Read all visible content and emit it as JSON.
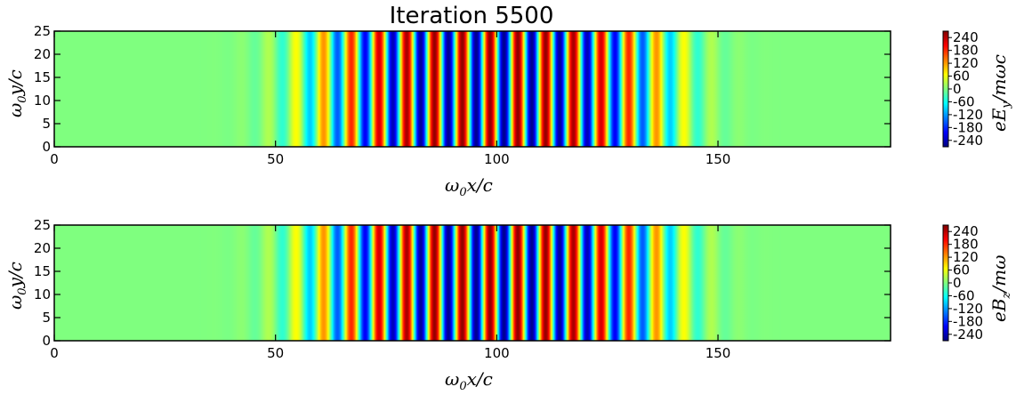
{
  "title": "Iteration 5500",
  "colormap": [
    "#00007f",
    "#0000ff",
    "#007fff",
    "#00ffff",
    "#7fff7f",
    "#ffff00",
    "#ff7f00",
    "#ff0000",
    "#7f0000"
  ],
  "chart_data": [
    {
      "type": "heatmap",
      "field": "Ey",
      "xlabel": "ω0x/c",
      "ylabel": "ω0y/c",
      "xlim": [
        0,
        189
      ],
      "ylim": [
        0,
        25
      ],
      "xticks": [
        0,
        50,
        100,
        150
      ],
      "yticks": [
        0,
        5,
        10,
        15,
        20,
        25
      ],
      "colorbar": {
        "label": "eEy/mωc",
        "range": [
          -270,
          270
        ],
        "ticks": [
          240,
          180,
          120,
          60,
          0,
          -60,
          -120,
          -180,
          -240
        ]
      },
      "wave": {
        "amplitude": 260,
        "center_x": 98.5,
        "wavelength": 6.28,
        "envelope_halfwidth_x": 37,
        "varies_along_y": false
      }
    },
    {
      "type": "heatmap",
      "field": "Bz",
      "xlabel": "ω0x/c",
      "ylabel": "ω0y/c",
      "xlim": [
        0,
        189
      ],
      "ylim": [
        0,
        25
      ],
      "xticks": [
        0,
        50,
        100,
        150
      ],
      "yticks": [
        0,
        5,
        10,
        15,
        20,
        25
      ],
      "colorbar": {
        "label": "eBz/mω",
        "range": [
          -270,
          270
        ],
        "ticks": [
          240,
          180,
          120,
          60,
          0,
          -60,
          -120,
          -180,
          -240
        ]
      },
      "wave": {
        "amplitude": 260,
        "center_x": 98.5,
        "wavelength": 6.28,
        "envelope_halfwidth_x": 37,
        "varies_along_y": false
      }
    }
  ]
}
